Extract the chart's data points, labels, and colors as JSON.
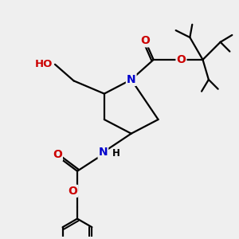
{
  "bg_color": "#efefef",
  "atom_colors": {
    "N": "#0000cc",
    "O": "#cc0000",
    "C": "#000000",
    "H": "#000000"
  },
  "bond_color": "#000000",
  "bond_width": 1.6,
  "dbo": 0.07,
  "figsize": [
    3.0,
    3.0
  ],
  "dpi": 100
}
